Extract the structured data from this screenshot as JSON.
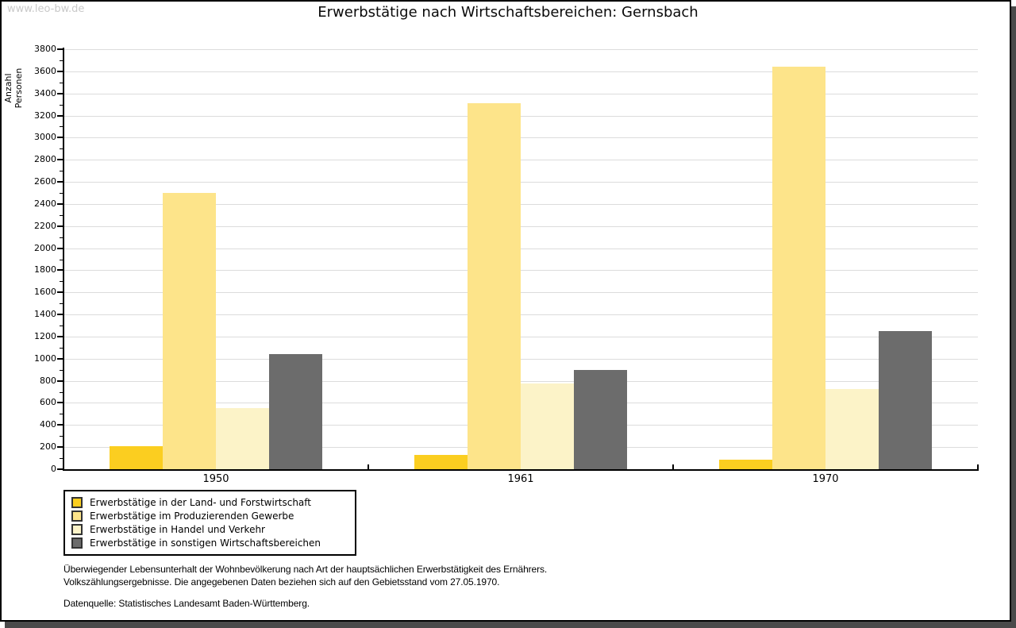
{
  "watermark": "www.leo-bw.de",
  "chart_data": {
    "type": "bar",
    "title": "Erwerbstätige nach Wirtschaftsbereichen: Gernsbach",
    "xlabel": "",
    "ylabel": "Anzahl Personen",
    "ylim": [
      0,
      3800
    ],
    "ytick_step": 200,
    "ytick_minor_step": 100,
    "grid": true,
    "legend_position": "bottom-left",
    "categories": [
      "1950",
      "1961",
      "1970"
    ],
    "series": [
      {
        "name": "Erwerbstätige in der Land- und Forstwirtschaft",
        "color": "#fbce20",
        "values": [
          210,
          130,
          85
        ]
      },
      {
        "name": "Erwerbstätige im Produzierenden Gewerbe",
        "color": "#fde48a",
        "values": [
          2500,
          3310,
          3645
        ]
      },
      {
        "name": "Erwerbstätige in Handel und Verkehr",
        "color": "#fcf3c8",
        "values": [
          550,
          775,
          725
        ]
      },
      {
        "name": "Erwerbstätige in sonstigen Wirtschaftsbereichen",
        "color": "#6c6c6c",
        "values": [
          1045,
          900,
          1250
        ]
      }
    ]
  },
  "footnotes": {
    "line1": "Überwiegender Lebensunterhalt der Wohnbevölkerung nach Art der hauptsächlichen Erwerbstätigkeit des Ernährers.",
    "line2": "Volkszählungsergebnisse. Die angegebenen Daten beziehen sich auf den Gebietsstand vom 27.05.1970.",
    "source": "Datenquelle: Statistisches Landesamt Baden-Württemberg."
  }
}
